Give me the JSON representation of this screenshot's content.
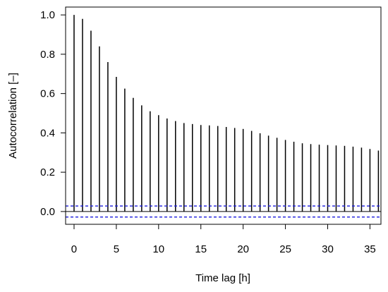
{
  "chart_data": {
    "type": "bar",
    "subtype": "autocorrelation-stem",
    "xlabel": "Time lag [h]",
    "ylabel": "Autocorrelation [–]",
    "xlim": [
      -1,
      36.3
    ],
    "ylim": [
      -0.065,
      1.04
    ],
    "xticks": [
      0,
      5,
      10,
      15,
      20,
      25,
      30,
      35
    ],
    "xtick_labels": [
      "0",
      "5",
      "10",
      "15",
      "20",
      "25",
      "30",
      "35"
    ],
    "yticks": [
      0.0,
      0.2,
      0.4,
      0.6,
      0.8,
      1.0
    ],
    "ytick_labels": [
      "0.0",
      "0.2",
      "0.4",
      "0.6",
      "0.8",
      "1.0"
    ],
    "x": [
      0,
      1,
      2,
      3,
      4,
      5,
      6,
      7,
      8,
      9,
      10,
      11,
      12,
      13,
      14,
      15,
      16,
      17,
      18,
      19,
      20,
      21,
      22,
      23,
      24,
      25,
      26,
      27,
      28,
      29,
      30,
      31,
      32,
      33,
      34,
      35,
      36
    ],
    "values": [
      1.0,
      0.98,
      0.92,
      0.84,
      0.76,
      0.685,
      0.625,
      0.578,
      0.54,
      0.51,
      0.49,
      0.473,
      0.46,
      0.45,
      0.445,
      0.44,
      0.438,
      0.435,
      0.43,
      0.425,
      0.42,
      0.41,
      0.398,
      0.386,
      0.375,
      0.364,
      0.355,
      0.347,
      0.343,
      0.34,
      0.338,
      0.336,
      0.334,
      0.33,
      0.325,
      0.318,
      0.31
    ],
    "confidence_band": [
      0.028,
      -0.028
    ],
    "zero_line": 0,
    "grid": false,
    "legend": "none",
    "colors": {
      "stems": "#000000",
      "confidence": "#1a1adb",
      "axes": "#000000"
    }
  }
}
